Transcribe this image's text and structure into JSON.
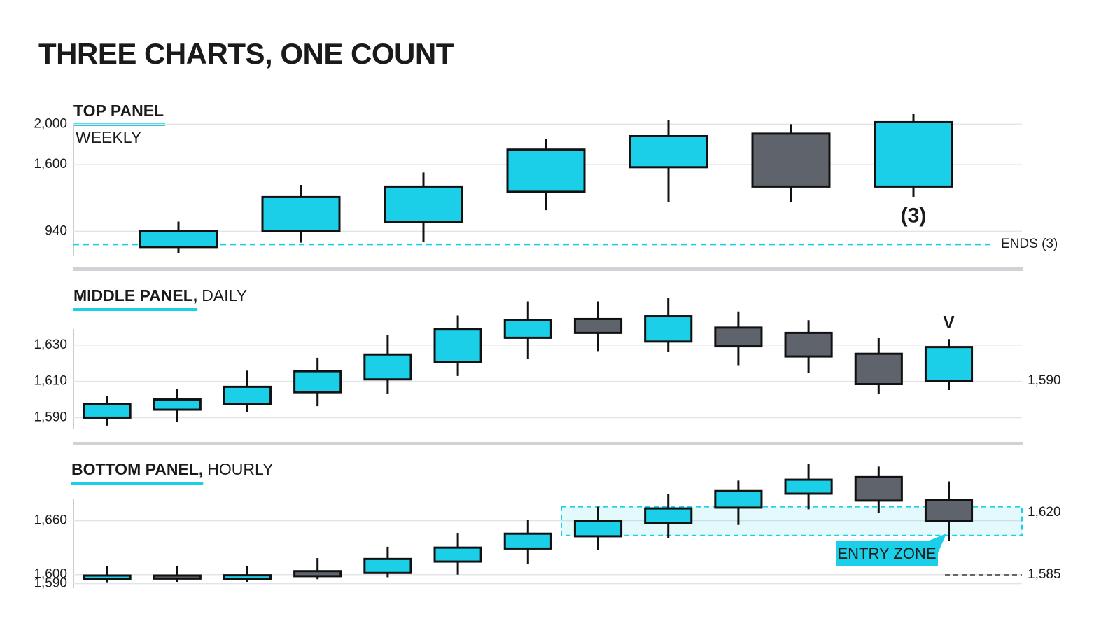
{
  "title": "THREE CHARTS, ONE COUNT",
  "chart_data": [
    {
      "type": "candlestick",
      "title": "TOP PANEL",
      "subtitle": "WEEKLY",
      "up_color": "#1ccfe8",
      "down_color": "#5f646c",
      "open": [
        784,
        940,
        1036,
        1331,
        1574,
        1906,
        1383
      ],
      "high": [
        1036,
        1400,
        1522,
        1857,
        2040,
        2000,
        2099
      ],
      "low": [
        723,
        827,
        836,
        1149,
        1227,
        1227,
        1279
      ],
      "close": [
        940,
        1279,
        1383,
        1748,
        1881,
        1383,
        2020
      ],
      "ylim": [
        700,
        2120
      ],
      "yticks": [
        {
          "value": 2000,
          "label": "2,000"
        },
        {
          "value": 1600,
          "label": "1,600"
        },
        940
      ],
      "grid": true,
      "count_label": "(3)",
      "ends_line": {
        "label": "ENDS (3)",
        "value": 810
      }
    },
    {
      "type": "candlestick",
      "title": "MIDDLE PANEL,",
      "subtitle": "DAILY",
      "up_color": "#1ccfe8",
      "down_color": "#5f646c",
      "open": [
        1590,
        1594.4,
        1597.4,
        1604,
        1611.1,
        1620.7,
        1634,
        1644.4,
        1631.9,
        1639.6,
        1636.7,
        1625.2,
        1610.4
      ],
      "high": [
        1601.9,
        1605.9,
        1615.9,
        1623,
        1635.6,
        1646.3,
        1654,
        1654,
        1656,
        1648.5,
        1643.7,
        1634,
        1633.3
      ],
      "low": [
        1585.6,
        1587.8,
        1593,
        1596.3,
        1603.3,
        1613,
        1622.6,
        1626.7,
        1626.3,
        1618.9,
        1614.8,
        1603.3,
        1605.2
      ],
      "close": [
        1597.4,
        1600,
        1607,
        1615.6,
        1624.8,
        1638.9,
        1643.7,
        1636.7,
        1645.9,
        1629.3,
        1623.7,
        1608.5,
        1628.9
      ],
      "ylim": [
        1584,
        1660
      ],
      "yticks": [
        {
          "value": 1630,
          "label": "1,630"
        },
        {
          "value": 1610,
          "label": "1,610"
        },
        {
          "value": 1590,
          "label": "1,590"
        }
      ],
      "grid": true,
      "count_label": "V",
      "right_labels": [
        "1,590"
      ]
    },
    {
      "type": "candlestick",
      "title": "BOTTOM PANEL,",
      "subtitle": "HOURLY",
      "up_color": "#1ccfe8",
      "down_color": "#5f646c",
      "open": [
        1595.1,
        1599,
        1595.4,
        1603.9,
        1601.9,
        1614.5,
        1629,
        1642.6,
        1657.1,
        1674.5,
        1690,
        1708.4,
        1683.2
      ],
      "high": [
        1609.7,
        1609.7,
        1609.7,
        1618.4,
        1631,
        1646.4,
        1661,
        1675.5,
        1690,
        1704.5,
        1722.9,
        1720,
        1703.6
      ],
      "low": [
        1591.5,
        1592,
        1592,
        1594.9,
        1597.1,
        1600,
        1611.6,
        1627.1,
        1640.6,
        1655.2,
        1672.6,
        1668.7,
        1637.7
      ],
      "close": [
        1599,
        1595.6,
        1599.3,
        1598.3,
        1617.4,
        1630,
        1645.5,
        1660,
        1673.6,
        1692.9,
        1705.5,
        1682.3,
        1660
      ],
      "ylim": [
        1585,
        1725
      ],
      "yticks": [
        {
          "value": 1660,
          "label": "1,660"
        },
        {
          "value": 1600,
          "label": "1,600"
        },
        {
          "value": 1590,
          "label": "1,590"
        }
      ],
      "grid": true,
      "entry_zone": {
        "label": "ENTRY ZONE",
        "range": [
          1643.5,
          1675.5
        ]
      },
      "right_labels": [
        "1,620",
        "1,585"
      ]
    }
  ]
}
